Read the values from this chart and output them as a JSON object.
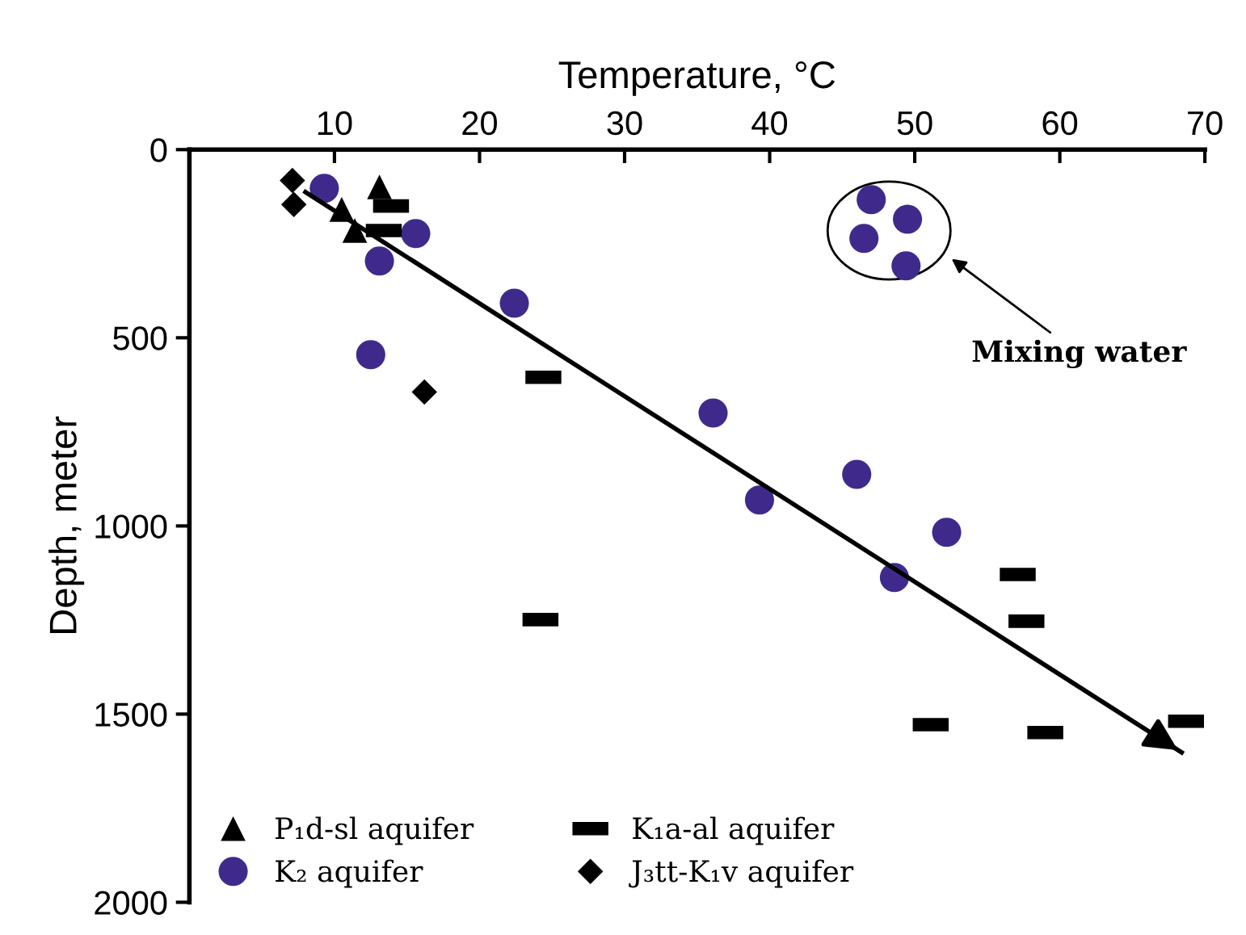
{
  "chart_data": {
    "type": "scatter",
    "xlabel": "Temperature, °C",
    "ylabel": "Depth, meter",
    "xlim": [
      0,
      70
    ],
    "xticks": [
      10,
      20,
      30,
      40,
      50,
      60,
      70
    ],
    "ylim": [
      2000,
      0
    ],
    "yticks": [
      0,
      500,
      1000,
      1500,
      2000
    ],
    "grid": false,
    "legend": "bottom left",
    "annotations": [
      "Mixing water"
    ],
    "series": [
      {
        "name": "P₁d-sl aquifer",
        "color": "#000000",
        "marker": "triangle",
        "x": [
          13.1,
          10.5,
          11.4
        ],
        "values": [
          99,
          159,
          215
        ]
      },
      {
        "name": "K₂ aquifer",
        "color": "#3f2a8c",
        "marker": "circle",
        "x": [
          9.3,
          15.6,
          13.1,
          22.4,
          12.5,
          47.0,
          49.5,
          46.5,
          49.4,
          36.1,
          39.3,
          46.0,
          52.2,
          48.6
        ],
        "values": [
          103,
          223,
          296,
          408,
          545,
          133,
          185,
          236,
          309,
          700,
          931,
          863,
          1017,
          1137
        ]
      },
      {
        "name": "K₁a-al aquifer",
        "color": "#000000",
        "marker": "square",
        "x": [
          13.9,
          13.4,
          24.4,
          57.1,
          24.2,
          57.7,
          51.1,
          59.0,
          68.7
        ],
        "values": [
          150,
          215,
          605,
          1129,
          1249,
          1253,
          1528,
          1549,
          1519
        ]
      },
      {
        "name": "J₃tt-K₁v aquifer",
        "color": "#000000",
        "marker": "diamond",
        "x": [
          7.1,
          7.2,
          16.2
        ],
        "values": [
          82,
          146,
          644
        ]
      },
      {
        "type": "line",
        "color": "#000000",
        "marker": "none",
        "line_style": "solid",
        "x": [
          8.0,
          68.4
        ],
        "values": [
          113,
          1602
        ]
      }
    ]
  }
}
